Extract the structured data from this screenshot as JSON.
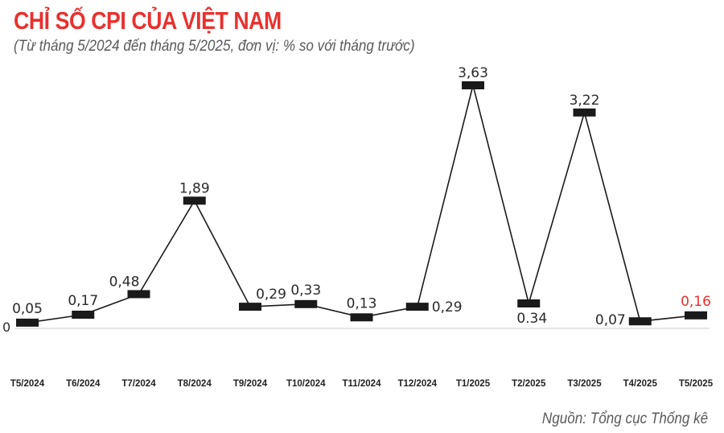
{
  "header": {
    "title": "CHỈ SỐ CPI CỦA VIỆT NAM",
    "subtitle": "(Từ tháng 5/2024 đến tháng 5/2025, đơn vị: % so với tháng trước)"
  },
  "footer": {
    "source": "Nguồn: Tổng cục Thống kê"
  },
  "colors": {
    "title": "#e8312f",
    "highlight": "#e8312f",
    "line": "#1a1a1a",
    "marker": "#1a1a1a",
    "baseline": "#dddddd"
  },
  "chart_data": {
    "type": "line",
    "title": "CHỈ SỐ CPI CỦA VIỆT NAM",
    "subtitle": "(Từ tháng 5/2024 đến tháng 5/2025, đơn vị: % so với tháng trước)",
    "xlabel": "",
    "ylabel": "% so với tháng trước",
    "categories": [
      "T5/2024",
      "T6/2024",
      "T7/2024",
      "T8/2024",
      "T9/2024",
      "T10/2024",
      "T11/2024",
      "T12/2024",
      "T1/2025",
      "T2/2025",
      "T3/2025",
      "T4/2025",
      "T5/2025"
    ],
    "values": [
      0.05,
      0.17,
      0.48,
      1.89,
      0.29,
      0.33,
      0.13,
      0.29,
      3.63,
      0.34,
      3.22,
      0.07,
      0.16
    ],
    "value_labels": [
      "0,05",
      "0,17",
      "0,48",
      "1,89",
      "0,29",
      "0,33",
      "0,13",
      "0,29",
      "3,63",
      "0.34",
      "3,22",
      "0,07",
      "0,16"
    ],
    "y_axis_label": "0",
    "ylim": [
      0,
      4
    ],
    "grid": false,
    "legend": null,
    "highlight_index": 12,
    "source": "Nguồn: Tổng cục Thống kê"
  }
}
